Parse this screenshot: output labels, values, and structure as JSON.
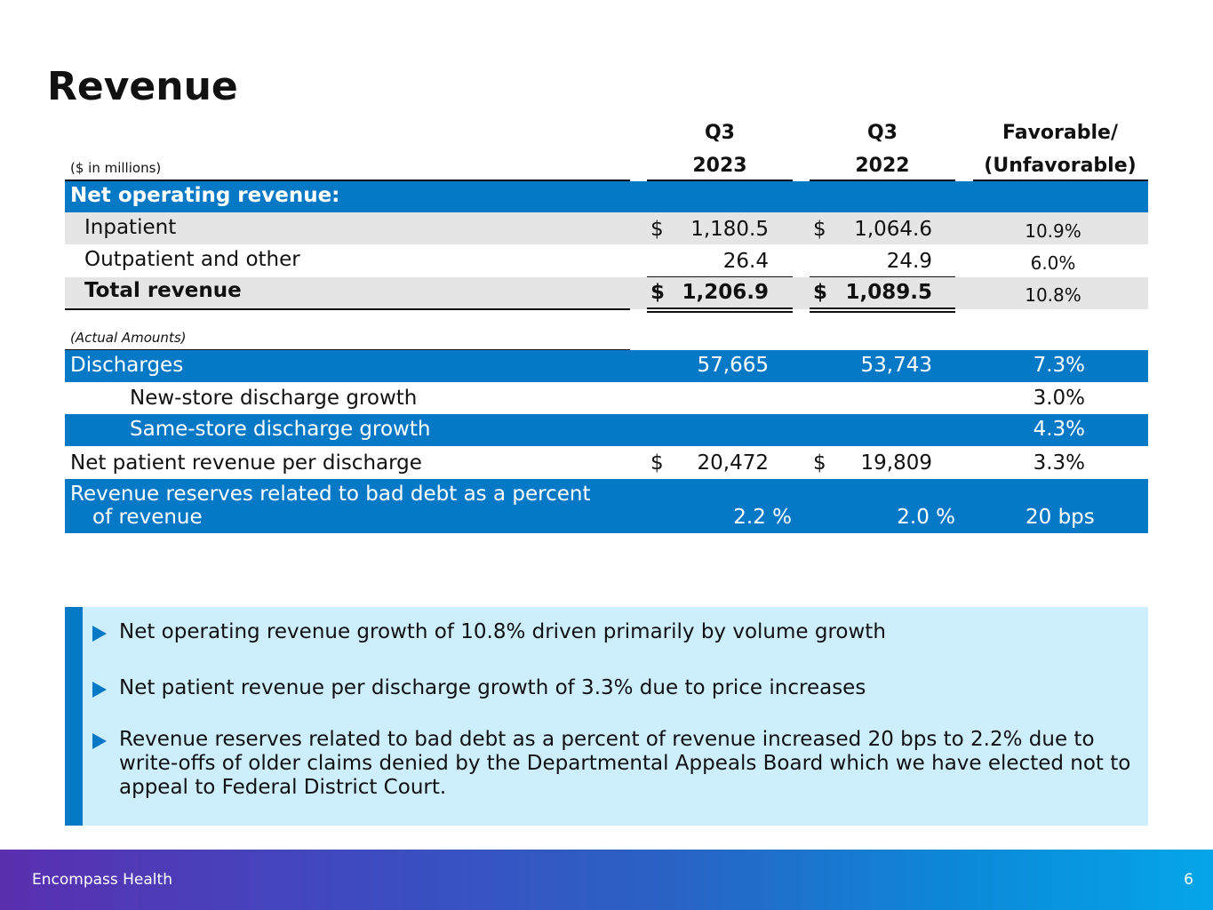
{
  "title": "Revenue",
  "header": {
    "col1_line1": "Q3",
    "col1_line2": "2023",
    "col2_line1": "Q3",
    "col2_line2": "2022",
    "col3_line1": "Favorable/",
    "col3_line2": "(Unfavorable)",
    "units": "($ in millions)"
  },
  "section1": {
    "label": "Net operating revenue:"
  },
  "rows": {
    "inpatient": {
      "label": "Inpatient",
      "dollar_a": "$",
      "a": "1,180.5",
      "dollar_b": "$",
      "b": "1,064.6",
      "change": "10.9%"
    },
    "outpatient": {
      "label": "Outpatient and other",
      "a": "26.4",
      "b": "24.9",
      "change": "6.0%"
    },
    "total": {
      "label": "Total revenue",
      "dollar_a": "$",
      "a": "1,206.9",
      "dollar_b": "$",
      "b": "1,089.5",
      "change": "10.8%"
    }
  },
  "actual_label": "(Actual Amounts)",
  "metrics": {
    "discharges": {
      "label": "Discharges",
      "a": "57,665",
      "b": "53,743",
      "change": "7.3%"
    },
    "new_store": {
      "label": "New-store discharge growth",
      "change": "3.0%"
    },
    "same_store": {
      "label": "Same-store discharge growth",
      "change": "4.3%"
    },
    "npr_per_discharge": {
      "label": "Net patient revenue per discharge",
      "dollar_a": "$",
      "a": "20,472",
      "dollar_b": "$",
      "b": "19,809",
      "change": "3.3%"
    },
    "bad_debt": {
      "label_line1": "Revenue reserves related to bad debt as a percent",
      "label_line2": "of revenue",
      "a": "2.2 %",
      "b": "2.0 %",
      "change": "20 bps"
    }
  },
  "bullets": [
    "Net operating revenue growth of 10.8% driven primarily by volume growth",
    "Net patient revenue per discharge growth of 3.3% due to price increases",
    "Revenue reserves related to bad debt as a percent of revenue increased 20 bps to 2.2% due to write-offs of older claims denied by the Departmental Appeals Board which we have elected not to appeal to Federal District Court."
  ],
  "footer": {
    "brand": "Encompass Health",
    "page": "6"
  },
  "colors": {
    "accent_blue": "#0679c6",
    "light_blue": "#cdeefc",
    "row_grey": "#e5e5e5"
  }
}
